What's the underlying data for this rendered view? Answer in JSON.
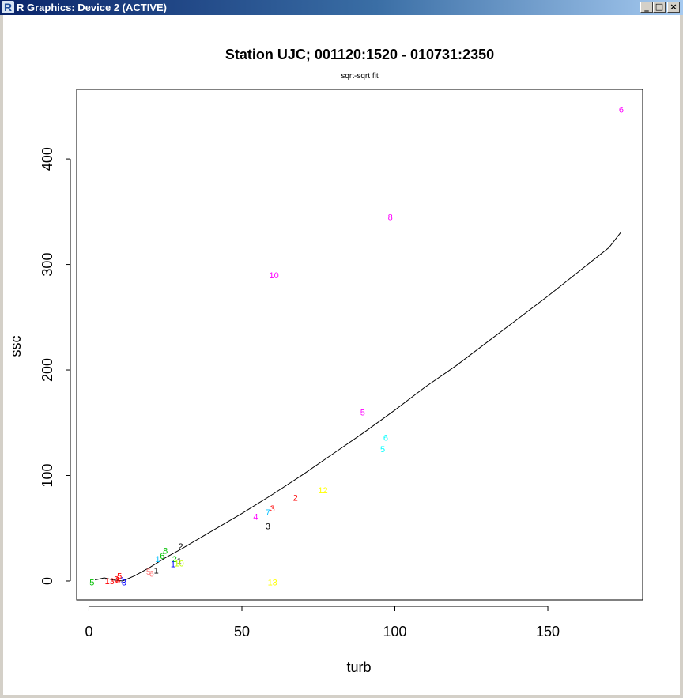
{
  "window": {
    "title": "R Graphics: Device 2 (ACTIVE)",
    "icon": "R-logo-icon",
    "controls": {
      "minimize": "_",
      "maximize": "□",
      "close": "×"
    }
  },
  "chart_data": {
    "type": "scatter",
    "title": "Station UJC; 001120:1520 - 010731:2350",
    "subtitle": "sqrt-sqrt fit",
    "xlabel": "turb",
    "ylabel": "ssc",
    "xlim": [
      -4,
      181
    ],
    "ylim": [
      -18,
      466
    ],
    "xticks": [
      0,
      50,
      100,
      150
    ],
    "yticks": [
      0,
      100,
      200,
      300,
      400
    ],
    "grid": false,
    "points": [
      {
        "x": 174,
        "y": 447,
        "label": "6",
        "color": "#ff00ff"
      },
      {
        "x": 98.5,
        "y": 345,
        "label": "8",
        "color": "#ff00ff"
      },
      {
        "x": 60.5,
        "y": 290,
        "label": "10",
        "color": "#ff00ff"
      },
      {
        "x": 89.5,
        "y": 160,
        "label": "5",
        "color": "#ff00ff"
      },
      {
        "x": 97,
        "y": 136,
        "label": "6",
        "color": "#00ffff"
      },
      {
        "x": 96,
        "y": 125,
        "label": "5",
        "color": "#00ffff"
      },
      {
        "x": 76.5,
        "y": 86,
        "label": "12",
        "color": "#ffff00"
      },
      {
        "x": 67.5,
        "y": 79,
        "label": "2",
        "color": "#ff0000"
      },
      {
        "x": 60,
        "y": 69,
        "label": "3",
        "color": "#ff0000"
      },
      {
        "x": 58.5,
        "y": 65,
        "label": "7",
        "color": "#00bfff"
      },
      {
        "x": 54.5,
        "y": 61,
        "label": "4",
        "color": "#ff00ff"
      },
      {
        "x": 58.5,
        "y": 52,
        "label": "3",
        "color": "#000000"
      },
      {
        "x": 60,
        "y": -1,
        "label": "13",
        "color": "#ffff00"
      },
      {
        "x": 30,
        "y": 33,
        "label": "2",
        "color": "#000000"
      },
      {
        "x": 25,
        "y": 29,
        "label": "8",
        "color": "#00c000"
      },
      {
        "x": 24,
        "y": 24,
        "label": "6",
        "color": "#00c000"
      },
      {
        "x": 22.5,
        "y": 21,
        "label": "1",
        "color": "#00bfff"
      },
      {
        "x": 28,
        "y": 21,
        "label": "2",
        "color": "#00c000"
      },
      {
        "x": 29.5,
        "y": 19,
        "label": "1",
        "color": "#000000"
      },
      {
        "x": 27.5,
        "y": 16,
        "label": "1",
        "color": "#0000ff"
      },
      {
        "x": 29.5,
        "y": 17,
        "label": "10",
        "color": "#c0ff00"
      },
      {
        "x": 22,
        "y": 10,
        "label": "1",
        "color": "#000000"
      },
      {
        "x": 19.5,
        "y": 9,
        "label": "5",
        "color": "#ff8080"
      },
      {
        "x": 20.5,
        "y": 7,
        "label": "6",
        "color": "#ff8080"
      },
      {
        "x": 10,
        "y": 5,
        "label": "5",
        "color": "#ff0000"
      },
      {
        "x": 9,
        "y": 2,
        "label": "3",
        "color": "#ff0000"
      },
      {
        "x": 6,
        "y": 0,
        "label": "1",
        "color": "#ff0000"
      },
      {
        "x": 7.5,
        "y": 0,
        "label": "3",
        "color": "#ff0000"
      },
      {
        "x": 9.5,
        "y": 1,
        "label": "8",
        "color": "#ff0000"
      },
      {
        "x": 11,
        "y": 1,
        "label": "1",
        "color": "#0000ff"
      },
      {
        "x": 11.5,
        "y": -1,
        "label": "3",
        "color": "#0000ff"
      },
      {
        "x": 1,
        "y": -1,
        "label": "5",
        "color": "#00c000"
      }
    ],
    "fit_line": {
      "x": [
        2,
        5,
        8,
        11,
        15,
        20,
        25,
        30,
        40,
        50,
        60,
        70,
        80,
        90,
        100,
        110,
        120,
        130,
        140,
        150,
        160,
        170,
        174
      ],
      "y": [
        1,
        3,
        1,
        0,
        5,
        13,
        22,
        30,
        47,
        64,
        82,
        101,
        121,
        141,
        162,
        184,
        204,
        226,
        248,
        270,
        293,
        316,
        331
      ],
      "color": "#000000"
    }
  }
}
